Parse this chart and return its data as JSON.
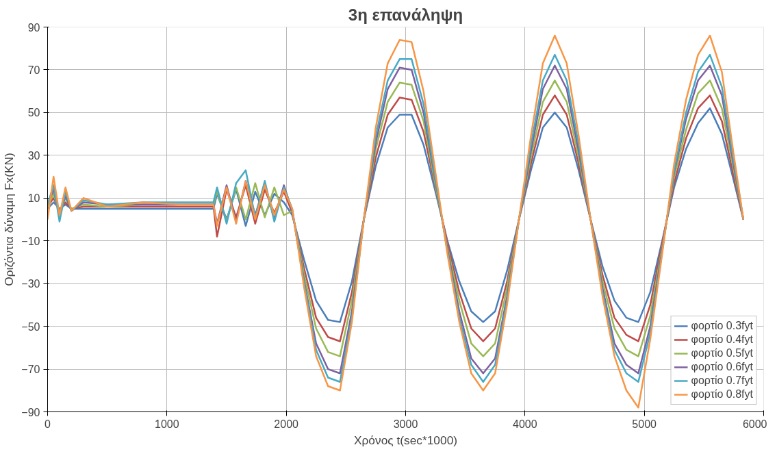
{
  "chart_data": {
    "type": "line",
    "title": "3η επανάληψη",
    "xlabel": "Χρόνος t(sec*1000)",
    "ylabel": "Οριζόντια δύναμη Fx(KN)",
    "x": [
      0,
      50,
      100,
      150,
      200,
      300,
      500,
      800,
      1100,
      1390,
      1420,
      1500,
      1580,
      1660,
      1740,
      1820,
      1900,
      1980,
      2050,
      2150,
      2250,
      2350,
      2450,
      2550,
      2650,
      2750,
      2850,
      2950,
      3050,
      3150,
      3250,
      3350,
      3450,
      3550,
      3650,
      3750,
      3850,
      3950,
      4050,
      4150,
      4250,
      4350,
      4450,
      4550,
      4650,
      4750,
      4850,
      4950,
      5050,
      5150,
      5250,
      5350,
      5450,
      5550,
      5650,
      5750,
      5830
    ],
    "series": [
      {
        "name": "φορτίο 0.3fyt",
        "color": "#4a7ebb",
        "values": [
          5,
          8,
          5,
          7,
          5,
          5,
          5,
          5,
          5,
          5,
          12,
          0,
          14,
          -3,
          13,
          2,
          12,
          8,
          2,
          -19,
          -38,
          -47,
          -48,
          -29,
          0,
          25,
          43,
          49,
          49,
          35,
          13,
          -10,
          -29,
          -43,
          -48,
          -43,
          -24,
          0,
          23,
          43,
          50,
          43,
          23,
          0,
          -22,
          -38,
          -46,
          -48,
          -34,
          -10,
          15,
          33,
          45,
          52,
          40,
          18,
          0
        ]
      },
      {
        "name": "φορτίο 0.4fyt",
        "color": "#be4b48",
        "values": [
          6,
          10,
          4,
          8,
          5,
          6,
          6,
          6,
          6,
          6,
          -8,
          14,
          1,
          16,
          -2,
          14,
          3,
          13,
          3,
          -23,
          -46,
          -55,
          -57,
          -34,
          0,
          29,
          49,
          57,
          56,
          41,
          15,
          -11,
          -34,
          -51,
          -57,
          -51,
          -29,
          0,
          26,
          49,
          58,
          49,
          26,
          0,
          -26,
          -46,
          -54,
          -57,
          -40,
          -11,
          17,
          38,
          52,
          58,
          46,
          20,
          0
        ]
      },
      {
        "name": "φορτίο 0.5fyt",
        "color": "#98b954",
        "values": [
          6,
          12,
          3,
          10,
          5,
          7,
          6,
          7,
          7,
          7,
          13,
          -1,
          15,
          0,
          17,
          1,
          15,
          2,
          4,
          -26,
          -51,
          -62,
          -64,
          -38,
          0,
          33,
          55,
          64,
          63,
          46,
          16,
          -13,
          -38,
          -58,
          -64,
          -58,
          -32,
          0,
          29,
          55,
          65,
          55,
          29,
          0,
          -29,
          -51,
          -61,
          -64,
          -45,
          -13,
          20,
          42,
          59,
          65,
          52,
          23,
          0
        ]
      },
      {
        "name": "φορτίο 0.6fyt",
        "color": "#7d60a0",
        "values": [
          7,
          14,
          2,
          11,
          4,
          8,
          7,
          7,
          7,
          7,
          -2,
          16,
          -1,
          18,
          2,
          17,
          0,
          16,
          4,
          -29,
          -58,
          -70,
          -72,
          -43,
          0,
          36,
          61,
          71,
          70,
          50,
          18,
          -14,
          -43,
          -65,
          -72,
          -65,
          -36,
          0,
          32,
          61,
          72,
          61,
          32,
          0,
          -32,
          -58,
          -68,
          -72,
          -50,
          -14,
          22,
          47,
          65,
          72,
          58,
          25,
          0
        ]
      },
      {
        "name": "φορτίο 0.7fyt",
        "color": "#46aac5",
        "values": [
          7,
          16,
          -1,
          13,
          4,
          9,
          7,
          8,
          8,
          8,
          15,
          -2,
          17,
          23,
          1,
          18,
          -1,
          15,
          5,
          -30,
          -61,
          -74,
          -76,
          -46,
          0,
          39,
          65,
          75,
          75,
          54,
          19,
          -15,
          -46,
          -68,
          -76,
          -68,
          -38,
          0,
          35,
          65,
          77,
          65,
          35,
          0,
          -34,
          -61,
          -72,
          -76,
          -53,
          -15,
          23,
          50,
          69,
          77,
          62,
          27,
          0
        ]
      },
      {
        "name": "φορτίο 0.8fyt",
        "color": "#f79646",
        "values": [
          0,
          20,
          2,
          15,
          4,
          10,
          6,
          8,
          7,
          7,
          -3,
          15,
          -2,
          18,
          0,
          16,
          2,
          14,
          5,
          -32,
          -64,
          -78,
          -80,
          -48,
          0,
          43,
          73,
          84,
          83,
          60,
          22,
          -16,
          -48,
          -72,
          -80,
          -72,
          -40,
          0,
          39,
          73,
          86,
          73,
          39,
          0,
          -36,
          -64,
          -80,
          -88,
          -56,
          -16,
          26,
          56,
          77,
          86,
          69,
          30,
          0
        ]
      }
    ],
    "xlim": [
      0,
      6000
    ],
    "xticks": [
      0,
      1000,
      2000,
      3000,
      4000,
      5000,
      6000
    ],
    "ylim": [
      -90,
      90
    ],
    "yticks": [
      -90,
      -70,
      -50,
      -30,
      -10,
      10,
      30,
      50,
      70,
      90
    ],
    "grid": true,
    "legend": "bottom right",
    "marker": "none",
    "line_style": "solid"
  }
}
